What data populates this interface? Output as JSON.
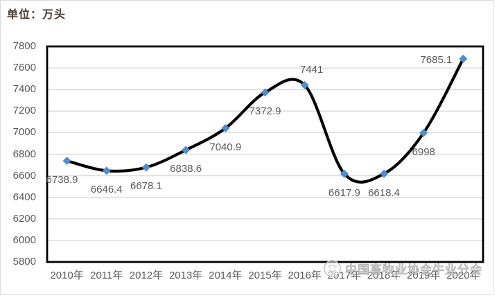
{
  "chart_data": {
    "type": "line",
    "smooth": true,
    "title": "",
    "unit_caption": "单位：万头",
    "xlabel": "",
    "ylabel": "",
    "categories": [
      "2010年",
      "2011年",
      "2012年",
      "2013年",
      "2014年",
      "2015年",
      "2016年",
      "2017年",
      "2018年",
      "2019年",
      "2020年"
    ],
    "values": [
      6738.9,
      6646.4,
      6678.1,
      6838.6,
      7040.9,
      7372.9,
      7441,
      6617.9,
      6618.4,
      6998,
      7685.1
    ],
    "label_placement": [
      "below-left",
      "below",
      "below",
      "below",
      "below",
      "below",
      "above-right",
      "below",
      "below",
      "below",
      "left"
    ],
    "ylim": [
      5800,
      7800
    ],
    "ytick_step": 200,
    "grid": true,
    "legend": "none",
    "line_color": "#000000",
    "marker": "diamond",
    "marker_color": "#4D8DD2"
  },
  "watermark": {
    "text": "中国畜牧业协会牛业分会"
  },
  "colors": {
    "grid": "#d9d9d9",
    "plot_border": "#000000",
    "axis_text": "#595959",
    "data_label_text": "#595959",
    "title_text": "#4a3b32",
    "frame": "#d9d9d9",
    "watermark": "#b3b3b3"
  }
}
